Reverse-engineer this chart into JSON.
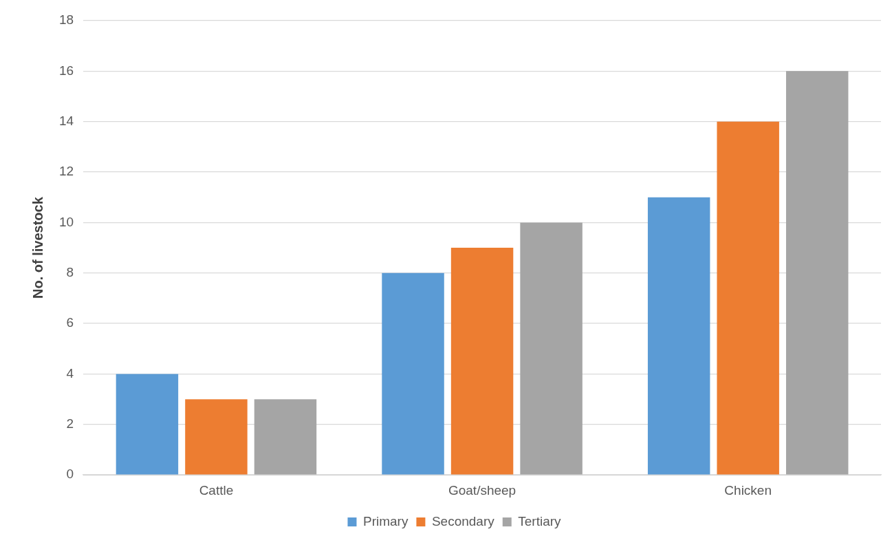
{
  "chart_data": {
    "type": "bar",
    "ylabel": "No. of livestock",
    "categories": [
      "Cattle",
      "Goat/sheep",
      "Chicken"
    ],
    "series": [
      {
        "name": "Primary",
        "color": "#5b9bd5",
        "values": [
          4,
          8,
          11
        ]
      },
      {
        "name": "Secondary",
        "color": "#ed7d31",
        "values": [
          3,
          9,
          14
        ]
      },
      {
        "name": "Tertiary",
        "color": "#a5a5a5",
        "values": [
          3,
          10,
          16
        ]
      }
    ],
    "ylim": [
      0,
      18
    ],
    "yticks": [
      0,
      2,
      4,
      6,
      8,
      10,
      12,
      14,
      16,
      18
    ],
    "grid": "y",
    "legend": "bottom"
  }
}
